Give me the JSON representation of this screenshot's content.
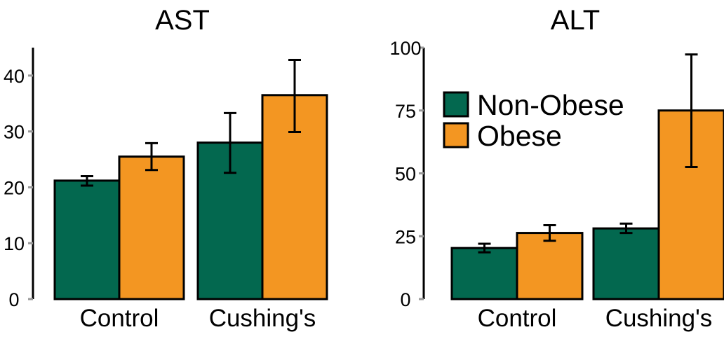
{
  "colors": {
    "non_obese": "#03684f",
    "obese": "#f39622",
    "axis": "#000000",
    "tick": "#999999"
  },
  "chart_data": [
    {
      "type": "bar",
      "title": "AST",
      "categories": [
        "Control",
        "Cushing's"
      ],
      "ylim": [
        0,
        45
      ],
      "yticks": [
        0,
        10,
        20,
        30,
        40
      ],
      "ytick_labels": [
        "0",
        "10",
        "20",
        "30",
        "40"
      ],
      "grid": false,
      "legend": null,
      "series": [
        {
          "name": "Non-Obese",
          "values": [
            21.2,
            28.0
          ],
          "err_low": [
            20.3,
            22.6
          ],
          "err_high": [
            22.0,
            33.3
          ]
        },
        {
          "name": "Obese",
          "values": [
            25.5,
            36.5
          ],
          "err_low": [
            23.1,
            29.9
          ],
          "err_high": [
            27.9,
            42.8
          ]
        }
      ]
    },
    {
      "type": "bar",
      "title": "ALT",
      "categories": [
        "Control",
        "Cushing's"
      ],
      "ylim": [
        0,
        100
      ],
      "yticks": [
        0,
        25,
        50,
        75,
        100
      ],
      "ytick_labels": [
        "0",
        "25",
        "50",
        "75",
        "100"
      ],
      "grid": false,
      "legend": {
        "position": "top-left",
        "entries": [
          "Non-Obese",
          "Obese"
        ]
      },
      "series": [
        {
          "name": "Non-Obese",
          "values": [
            20.3,
            28.1
          ],
          "err_low": [
            18.6,
            26.3
          ],
          "err_high": [
            22.0,
            30.0
          ]
        },
        {
          "name": "Obese",
          "values": [
            26.3,
            75.0
          ],
          "err_low": [
            23.2,
            52.5
          ],
          "err_high": [
            29.4,
            97.3
          ]
        }
      ]
    }
  ]
}
